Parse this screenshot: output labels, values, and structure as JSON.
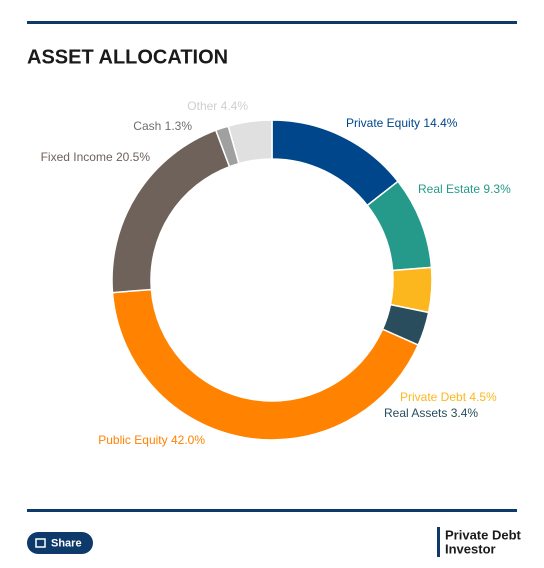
{
  "chart_data": {
    "type": "donut",
    "title": "ASSET ALLOCATION",
    "categories": [
      "Private Equity",
      "Real Estate",
      "Private Debt",
      "Real Assets",
      "Public Equity",
      "Fixed Income",
      "Cash",
      "Other"
    ],
    "values": [
      14.4,
      9.3,
      4.5,
      3.4,
      42.0,
      20.5,
      1.3,
      4.4
    ],
    "value_labels": [
      "14.4%",
      "9.3%",
      "4.5%",
      "3.4%",
      "42.0%",
      "20.5%",
      "1.3%",
      "4.4%"
    ],
    "colors": [
      "#00468b",
      "#259a8a",
      "#fdb71e",
      "#294d5c",
      "#ff8200",
      "#6f625a",
      "#a0a0a0",
      "#e0e0e0"
    ],
    "label_colors": [
      "#00468b",
      "#259a8a",
      "#fdb71e",
      "#294d5c",
      "#ff8200",
      "#6f625a",
      "#6f6f6f",
      "#cfcfcf"
    ]
  },
  "footer": {
    "share_button": "Share",
    "logo": [
      "Private Debt",
      "Investor"
    ]
  }
}
